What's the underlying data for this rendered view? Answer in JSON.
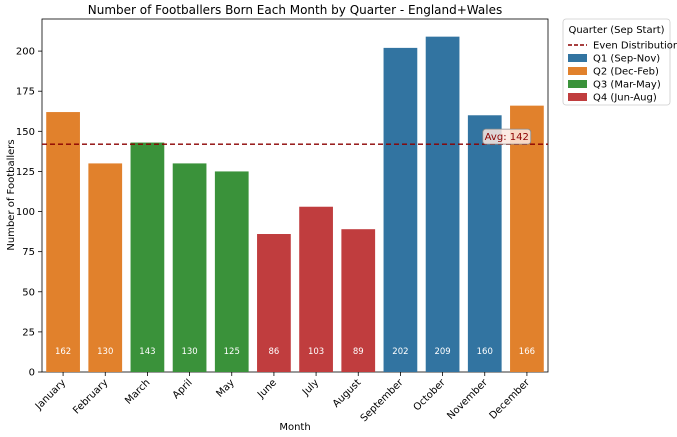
{
  "chart_data": {
    "type": "bar",
    "title": "Number of Footballers Born Each Month by Quarter - England+Wales",
    "xlabel": "Month",
    "ylabel": "Number of Footballers",
    "categories": [
      "January",
      "February",
      "March",
      "April",
      "May",
      "June",
      "July",
      "August",
      "September",
      "October",
      "November",
      "December"
    ],
    "values": [
      162,
      130,
      143,
      130,
      125,
      86,
      103,
      89,
      202,
      209,
      160,
      166
    ],
    "quarter_of_bar": [
      "Q2 (Dec-Feb)",
      "Q2 (Dec-Feb)",
      "Q3 (Mar-May)",
      "Q3 (Mar-May)",
      "Q3 (Mar-May)",
      "Q4 (Jun-Aug)",
      "Q4 (Jun-Aug)",
      "Q4 (Jun-Aug)",
      "Q1 (Sep-Nov)",
      "Q1 (Sep-Nov)",
      "Q1 (Sep-Nov)",
      "Q2 (Dec-Feb)"
    ],
    "quarter_colors": {
      "Q1 (Sep-Nov)": "#3274a1",
      "Q2 (Dec-Feb)": "#e1812c",
      "Q3 (Mar-May)": "#3a923a",
      "Q4 (Jun-Aug)": "#c03d3e"
    },
    "ylim": [
      0,
      220
    ],
    "yticks": [
      0,
      25,
      50,
      75,
      100,
      125,
      150,
      175,
      200
    ],
    "reference_line": {
      "value": 142,
      "label": "Even Distribution",
      "annotation": "Avg: 142",
      "color": "#8b0000"
    },
    "legend": {
      "title": "Quarter (Sep Start)",
      "placement": "outside-right-top",
      "entries": [
        "Even Distribution",
        "Q1 (Sep-Nov)",
        "Q2 (Dec-Feb)",
        "Q3 (Mar-May)",
        "Q4 (Jun-Aug)"
      ]
    },
    "grid": false
  }
}
